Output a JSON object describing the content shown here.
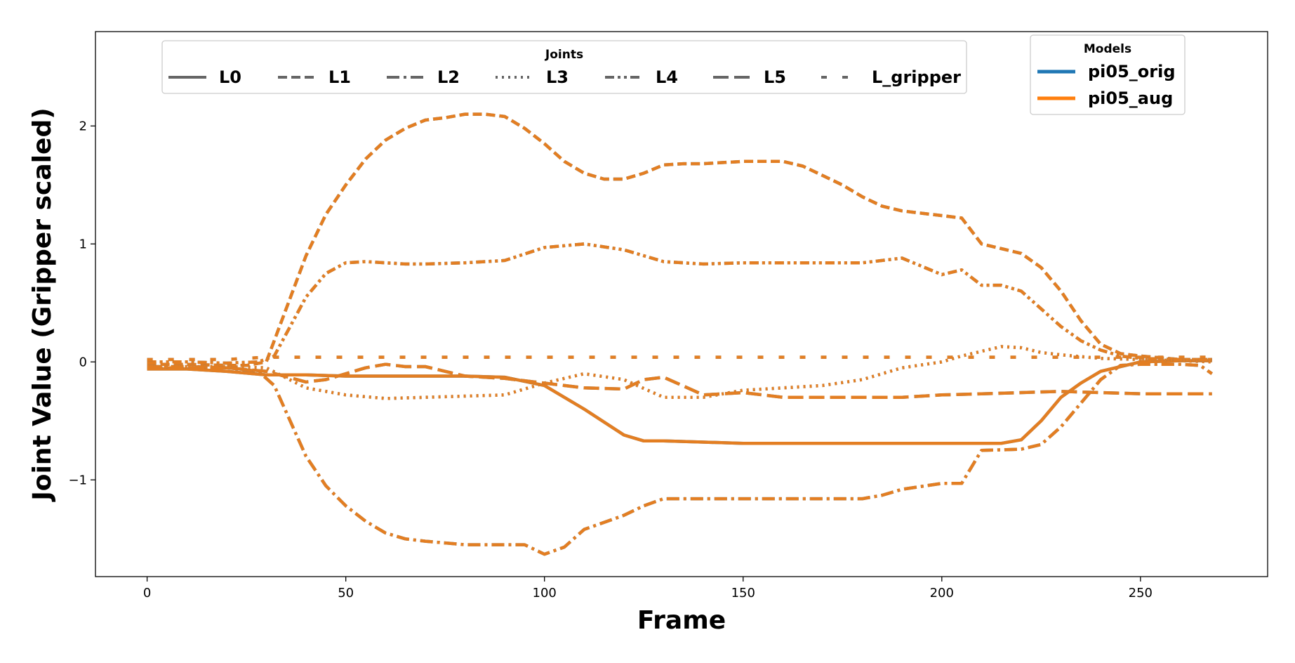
{
  "chart_data": {
    "type": "line",
    "xlabel": "Frame",
    "ylabel": "Joint Value (Gripper scaled)",
    "xlim": [
      -13,
      282
    ],
    "ylim": [
      -1.82,
      2.8
    ],
    "xticks": [
      0,
      50,
      100,
      150,
      200,
      250
    ],
    "yticks": [
      -1,
      0,
      1,
      2
    ],
    "ytick_labels": [
      "−1",
      "0",
      "1",
      "2"
    ],
    "grid": false,
    "legend_joints": {
      "title": "Joints",
      "placement": "top-left",
      "entries": [
        {
          "label": "L0",
          "dash": "solid"
        },
        {
          "label": "L1",
          "dash": "dashed"
        },
        {
          "label": "L2",
          "dash": "dashdot"
        },
        {
          "label": "L3",
          "dash": "dotted"
        },
        {
          "label": "L4",
          "dash": "dashdotdot"
        },
        {
          "label": "L5",
          "dash": "longdash"
        },
        {
          "label": "L_gripper",
          "dash": "sparse"
        }
      ]
    },
    "legend_models": {
      "title": "Models",
      "placement": "top-right",
      "entries": [
        {
          "label": "pi05_orig",
          "color": "#1f77b4"
        },
        {
          "label": "pi05_aug",
          "color": "#ff7f0e"
        }
      ]
    },
    "series": [
      {
        "joint": "L0",
        "dash": "solid",
        "x": [
          0,
          10,
          20,
          30,
          40,
          50,
          60,
          70,
          80,
          90,
          100,
          110,
          120,
          125,
          130,
          140,
          150,
          160,
          170,
          180,
          190,
          200,
          210,
          215,
          220,
          225,
          230,
          235,
          240,
          250,
          260,
          268
        ],
        "y": [
          -0.06,
          -0.06,
          -0.08,
          -0.11,
          -0.11,
          -0.12,
          -0.12,
          -0.12,
          -0.12,
          -0.13,
          -0.2,
          -0.4,
          -0.62,
          -0.67,
          -0.67,
          -0.68,
          -0.69,
          -0.69,
          -0.69,
          -0.69,
          -0.69,
          -0.69,
          -0.69,
          -0.69,
          -0.66,
          -0.5,
          -0.3,
          -0.18,
          -0.08,
          0.0,
          0.01,
          0.01
        ]
      },
      {
        "joint": "L1",
        "dash": "dashed",
        "x": [
          0,
          10,
          20,
          25,
          30,
          35,
          40,
          45,
          50,
          55,
          60,
          65,
          70,
          75,
          80,
          85,
          90,
          95,
          100,
          105,
          110,
          115,
          120,
          125,
          130,
          135,
          140,
          150,
          160,
          165,
          170,
          175,
          180,
          185,
          190,
          200,
          205,
          210,
          220,
          225,
          230,
          235,
          240,
          245,
          250,
          260,
          268
        ],
        "y": [
          -0.02,
          -0.02,
          -0.03,
          -0.03,
          0.0,
          0.45,
          0.9,
          1.25,
          1.5,
          1.72,
          1.88,
          1.98,
          2.05,
          2.07,
          2.1,
          2.1,
          2.08,
          1.98,
          1.85,
          1.7,
          1.6,
          1.55,
          1.55,
          1.6,
          1.67,
          1.68,
          1.68,
          1.7,
          1.7,
          1.66,
          1.58,
          1.5,
          1.4,
          1.32,
          1.28,
          1.24,
          1.22,
          1.0,
          0.92,
          0.8,
          0.6,
          0.35,
          0.15,
          0.07,
          0.05,
          0.02,
          0.02
        ]
      },
      {
        "joint": "L2",
        "dash": "dashdot",
        "x": [
          0,
          10,
          20,
          28,
          32,
          36,
          40,
          45,
          50,
          55,
          60,
          65,
          70,
          80,
          90,
          95,
          100,
          105,
          110,
          120,
          125,
          130,
          140,
          150,
          160,
          170,
          180,
          185,
          190,
          200,
          205,
          210,
          220,
          225,
          230,
          235,
          240,
          245,
          250,
          260,
          265,
          268
        ],
        "y": [
          -0.04,
          -0.04,
          -0.05,
          -0.08,
          -0.2,
          -0.5,
          -0.8,
          -1.05,
          -1.22,
          -1.35,
          -1.45,
          -1.5,
          -1.52,
          -1.55,
          -1.55,
          -1.55,
          -1.63,
          -1.57,
          -1.42,
          -1.3,
          -1.22,
          -1.16,
          -1.16,
          -1.16,
          -1.16,
          -1.16,
          -1.16,
          -1.13,
          -1.08,
          -1.03,
          -1.03,
          -0.75,
          -0.74,
          -0.7,
          -0.55,
          -0.35,
          -0.15,
          -0.03,
          -0.02,
          -0.02,
          -0.03,
          -0.1
        ]
      },
      {
        "joint": "L3",
        "dash": "dotted",
        "x": [
          0,
          10,
          20,
          30,
          40,
          50,
          60,
          70,
          80,
          90,
          100,
          110,
          120,
          130,
          140,
          150,
          160,
          170,
          180,
          190,
          200,
          205,
          210,
          215,
          220,
          225,
          230,
          240,
          250,
          260,
          268
        ],
        "y": [
          -0.04,
          -0.04,
          -0.04,
          -0.05,
          -0.22,
          -0.28,
          -0.31,
          -0.3,
          -0.29,
          -0.28,
          -0.18,
          -0.1,
          -0.15,
          -0.3,
          -0.3,
          -0.24,
          -0.22,
          -0.2,
          -0.15,
          -0.05,
          0.0,
          0.05,
          0.09,
          0.13,
          0.12,
          0.08,
          0.06,
          0.03,
          0.02,
          0.01,
          0.0
        ]
      },
      {
        "joint": "L4",
        "dash": "dashdotdot",
        "x": [
          0,
          10,
          20,
          28,
          32,
          36,
          40,
          45,
          50,
          55,
          60,
          65,
          70,
          80,
          90,
          100,
          110,
          120,
          125,
          130,
          140,
          150,
          160,
          170,
          180,
          190,
          200,
          205,
          210,
          215,
          220,
          225,
          230,
          235,
          240,
          245,
          250,
          260,
          265,
          268
        ],
        "y": [
          0.0,
          0.0,
          -0.01,
          0.0,
          0.05,
          0.3,
          0.55,
          0.75,
          0.84,
          0.85,
          0.84,
          0.83,
          0.83,
          0.84,
          0.86,
          0.97,
          1.0,
          0.95,
          0.9,
          0.85,
          0.83,
          0.84,
          0.84,
          0.84,
          0.84,
          0.88,
          0.74,
          0.78,
          0.65,
          0.65,
          0.6,
          0.45,
          0.3,
          0.18,
          0.1,
          0.05,
          0.03,
          0.02,
          0.02,
          0.02
        ]
      },
      {
        "joint": "L5",
        "dash": "longdash",
        "x": [
          0,
          10,
          20,
          30,
          40,
          45,
          50,
          55,
          60,
          65,
          70,
          80,
          90,
          100,
          110,
          120,
          125,
          130,
          140,
          150,
          160,
          170,
          180,
          190,
          200,
          210,
          220,
          230,
          240,
          250,
          260,
          268
        ],
        "y": [
          -0.05,
          -0.05,
          -0.05,
          -0.08,
          -0.17,
          -0.15,
          -0.1,
          -0.05,
          -0.02,
          -0.04,
          -0.04,
          -0.12,
          -0.14,
          -0.18,
          -0.22,
          -0.23,
          -0.15,
          -0.13,
          -0.28,
          -0.26,
          -0.3,
          -0.3,
          -0.3,
          -0.3,
          -0.28,
          -0.27,
          -0.26,
          -0.25,
          -0.26,
          -0.27,
          -0.27,
          -0.27
        ]
      },
      {
        "joint": "L_gripper",
        "dash": "sparse",
        "x": [
          0,
          10,
          20,
          30,
          40,
          50,
          60,
          70,
          80,
          90,
          100,
          110,
          120,
          130,
          140,
          150,
          160,
          170,
          180,
          190,
          200,
          210,
          220,
          230,
          240,
          250,
          260,
          268
        ],
        "y": [
          0.02,
          0.02,
          0.02,
          0.04,
          0.04,
          0.04,
          0.04,
          0.04,
          0.04,
          0.04,
          0.04,
          0.04,
          0.04,
          0.04,
          0.04,
          0.04,
          0.04,
          0.04,
          0.04,
          0.04,
          0.04,
          0.04,
          0.04,
          0.04,
          0.04,
          0.04,
          0.04,
          0.04
        ]
      }
    ]
  }
}
